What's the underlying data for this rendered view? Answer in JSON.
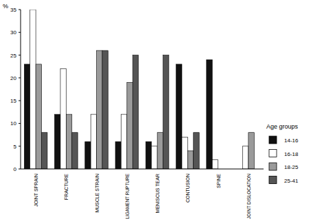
{
  "chart_data": {
    "type": "bar",
    "y_label": "%",
    "legend_title": "Age groups",
    "legend": "right",
    "grid": false,
    "categories": [
      "JOINT SPRAIN",
      "FRACTURE",
      "MUSCLE STRAIN",
      "LIGAMENT RUPTURE",
      "MENISCUS TEAR",
      "CONTUSION",
      "SPINE",
      "JOINT DISLOCATION"
    ],
    "series": [
      {
        "name": "14-16",
        "color": "#111111",
        "values": [
          23,
          12,
          6,
          6,
          6,
          23,
          24,
          0
        ]
      },
      {
        "name": "16-18",
        "color": "#ffffff",
        "values": [
          35,
          22,
          12,
          12,
          5,
          7,
          2,
          5
        ]
      },
      {
        "name": "18-25",
        "color": "#9a9a9a",
        "values": [
          23,
          12,
          26,
          19,
          8,
          4,
          0,
          8
        ]
      },
      {
        "name": "25-41",
        "color": "#555555",
        "values": [
          8,
          8,
          26,
          25,
          25,
          8,
          0,
          0
        ]
      }
    ],
    "ylim": [
      0,
      35
    ],
    "yticks": [
      0,
      5,
      10,
      15,
      20,
      25,
      30,
      35
    ]
  }
}
